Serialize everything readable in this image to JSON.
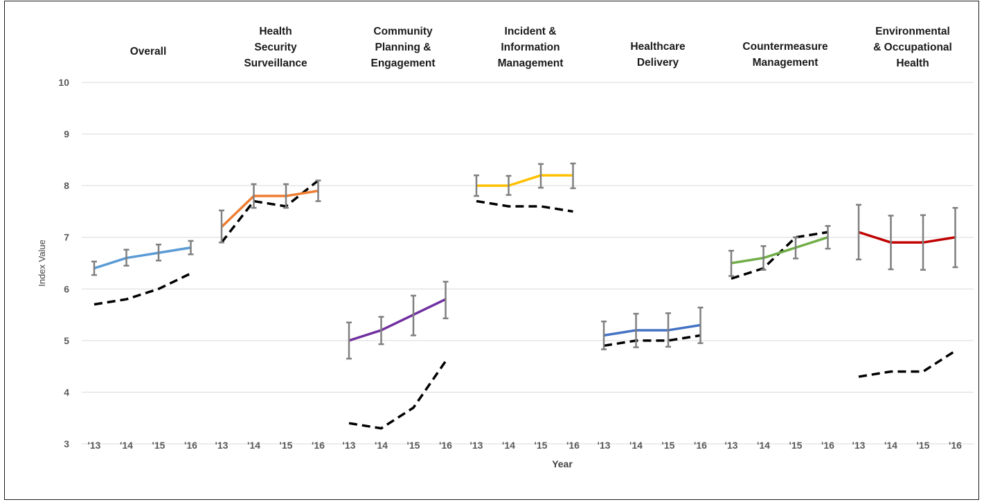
{
  "chart_data": {
    "type": "line",
    "xlabel": "Year",
    "ylabel": "Index Value",
    "ylim": [
      3,
      10
    ],
    "yticks": [
      3,
      4,
      5,
      6,
      7,
      8,
      9,
      10
    ],
    "grid": "horizontal",
    "x": [
      "'13",
      "'14",
      "'15",
      "'16"
    ],
    "panels": [
      {
        "title": [
          "Overall"
        ],
        "color": "#5b9bd5",
        "values": [
          6.4,
          6.6,
          6.7,
          6.8
        ],
        "err_low": [
          6.27,
          6.45,
          6.55,
          6.67
        ],
        "err_high": [
          6.53,
          6.76,
          6.86,
          6.93
        ],
        "dashed": [
          5.7,
          5.8,
          6.0,
          6.3
        ]
      },
      {
        "title": [
          "Health",
          "Security",
          "Surveillance"
        ],
        "color": "#ed7d31",
        "values": [
          7.2,
          7.8,
          7.8,
          7.9
        ],
        "err_low": [
          6.9,
          7.57,
          7.57,
          7.7
        ],
        "err_high": [
          7.52,
          8.03,
          8.03,
          8.1
        ],
        "dashed": [
          6.9,
          7.7,
          7.6,
          8.1
        ]
      },
      {
        "title": [
          "Community",
          "Planning &",
          "Engagement"
        ],
        "color": "#7030a0",
        "values": [
          5.0,
          5.2,
          5.5,
          5.8
        ],
        "err_low": [
          4.65,
          4.93,
          5.1,
          5.43
        ],
        "err_high": [
          5.35,
          5.46,
          5.87,
          6.14
        ],
        "dashed": [
          3.4,
          3.3,
          3.7,
          4.6
        ]
      },
      {
        "title": [
          "Incident &",
          "Information",
          "Management"
        ],
        "color": "#ffc000",
        "values": [
          8.0,
          8.0,
          8.2,
          8.2
        ],
        "err_low": [
          7.8,
          7.82,
          7.96,
          7.95
        ],
        "err_high": [
          8.2,
          8.19,
          8.42,
          8.43
        ],
        "dashed": [
          7.7,
          7.6,
          7.6,
          7.5
        ]
      },
      {
        "title": [
          "Healthcare",
          "Delivery"
        ],
        "color": "#4472c4",
        "values": [
          5.1,
          5.2,
          5.2,
          5.3
        ],
        "err_low": [
          4.83,
          4.87,
          4.88,
          4.95
        ],
        "err_high": [
          5.37,
          5.52,
          5.53,
          5.64
        ],
        "dashed": [
          4.9,
          5.0,
          5.0,
          5.1
        ]
      },
      {
        "title": [
          "Countermeasure",
          "Management"
        ],
        "color": "#70ad47",
        "values": [
          6.5,
          6.6,
          6.8,
          7.0
        ],
        "err_low": [
          6.25,
          6.37,
          6.59,
          6.78
        ],
        "err_high": [
          6.74,
          6.83,
          7.0,
          7.22
        ],
        "dashed": [
          6.2,
          6.4,
          7.0,
          7.1
        ]
      },
      {
        "title": [
          "Environmental",
          "& Occupational",
          "Health"
        ],
        "color": "#c00000",
        "values": [
          7.1,
          6.9,
          6.9,
          7.0
        ],
        "err_low": [
          6.57,
          6.38,
          6.37,
          6.42
        ],
        "err_high": [
          7.63,
          7.42,
          7.43,
          7.57
        ],
        "dashed": [
          4.3,
          4.4,
          4.4,
          4.8
        ]
      }
    ]
  }
}
